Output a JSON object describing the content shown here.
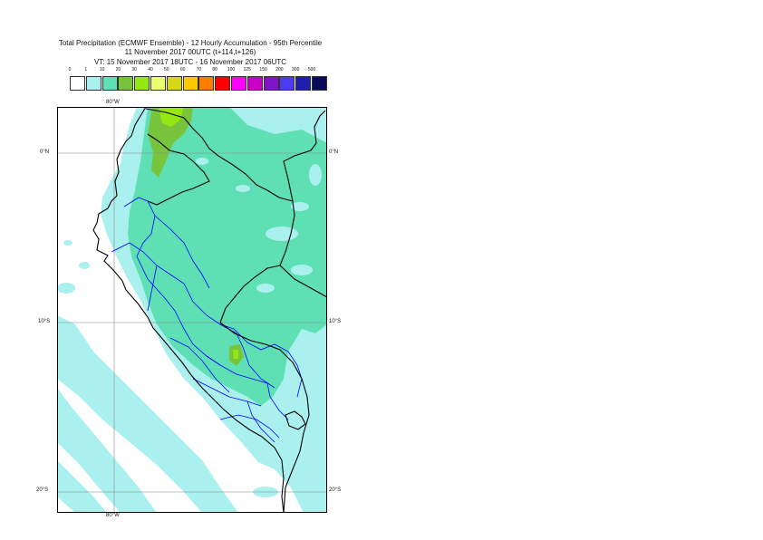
{
  "title": {
    "line1": "Total Precipitation (ECMWF Ensemble) - 12 Hourly Accumulation - 95th Percentile",
    "line2": "11 November 2017 00UTC (t+114,t+126)",
    "line3": "VT: 15 November 2017 18UTC - 16 November 2017 06UTC"
  },
  "legend": {
    "thresholds": [
      "0",
      "1",
      "10",
      "20",
      "30",
      "40",
      "50",
      "60",
      "70",
      "80",
      "100",
      "125",
      "150",
      "200",
      "300",
      "500"
    ],
    "colors": [
      "#ffffff",
      "#aaf0ee",
      "#5fe0b4",
      "#78c43c",
      "#96e614",
      "#e8ff6e",
      "#d7d718",
      "#ffc800",
      "#ff7d00",
      "#ff0000",
      "#ff00ff",
      "#c800c8",
      "#8214c8",
      "#4b3cf0",
      "#1e1eaa",
      "#0a0a5a"
    ]
  },
  "axes": {
    "lon_top": "80°W",
    "lon_bottom": "80°W",
    "lat_0_left": "0°N",
    "lat_0_right": "0°N",
    "lat_10_left": "10°S",
    "lat_10_right": "10°S",
    "lat_20_left": "20°S",
    "lat_20_right": "20°S"
  },
  "map": {
    "colors": {
      "light_cyan": "#aaf0ee",
      "aqua_green": "#5fe0b4",
      "green": "#78c43c",
      "lime": "#96e614",
      "border": "#000000",
      "admin": "#0000ff",
      "grid": "#888888"
    }
  }
}
